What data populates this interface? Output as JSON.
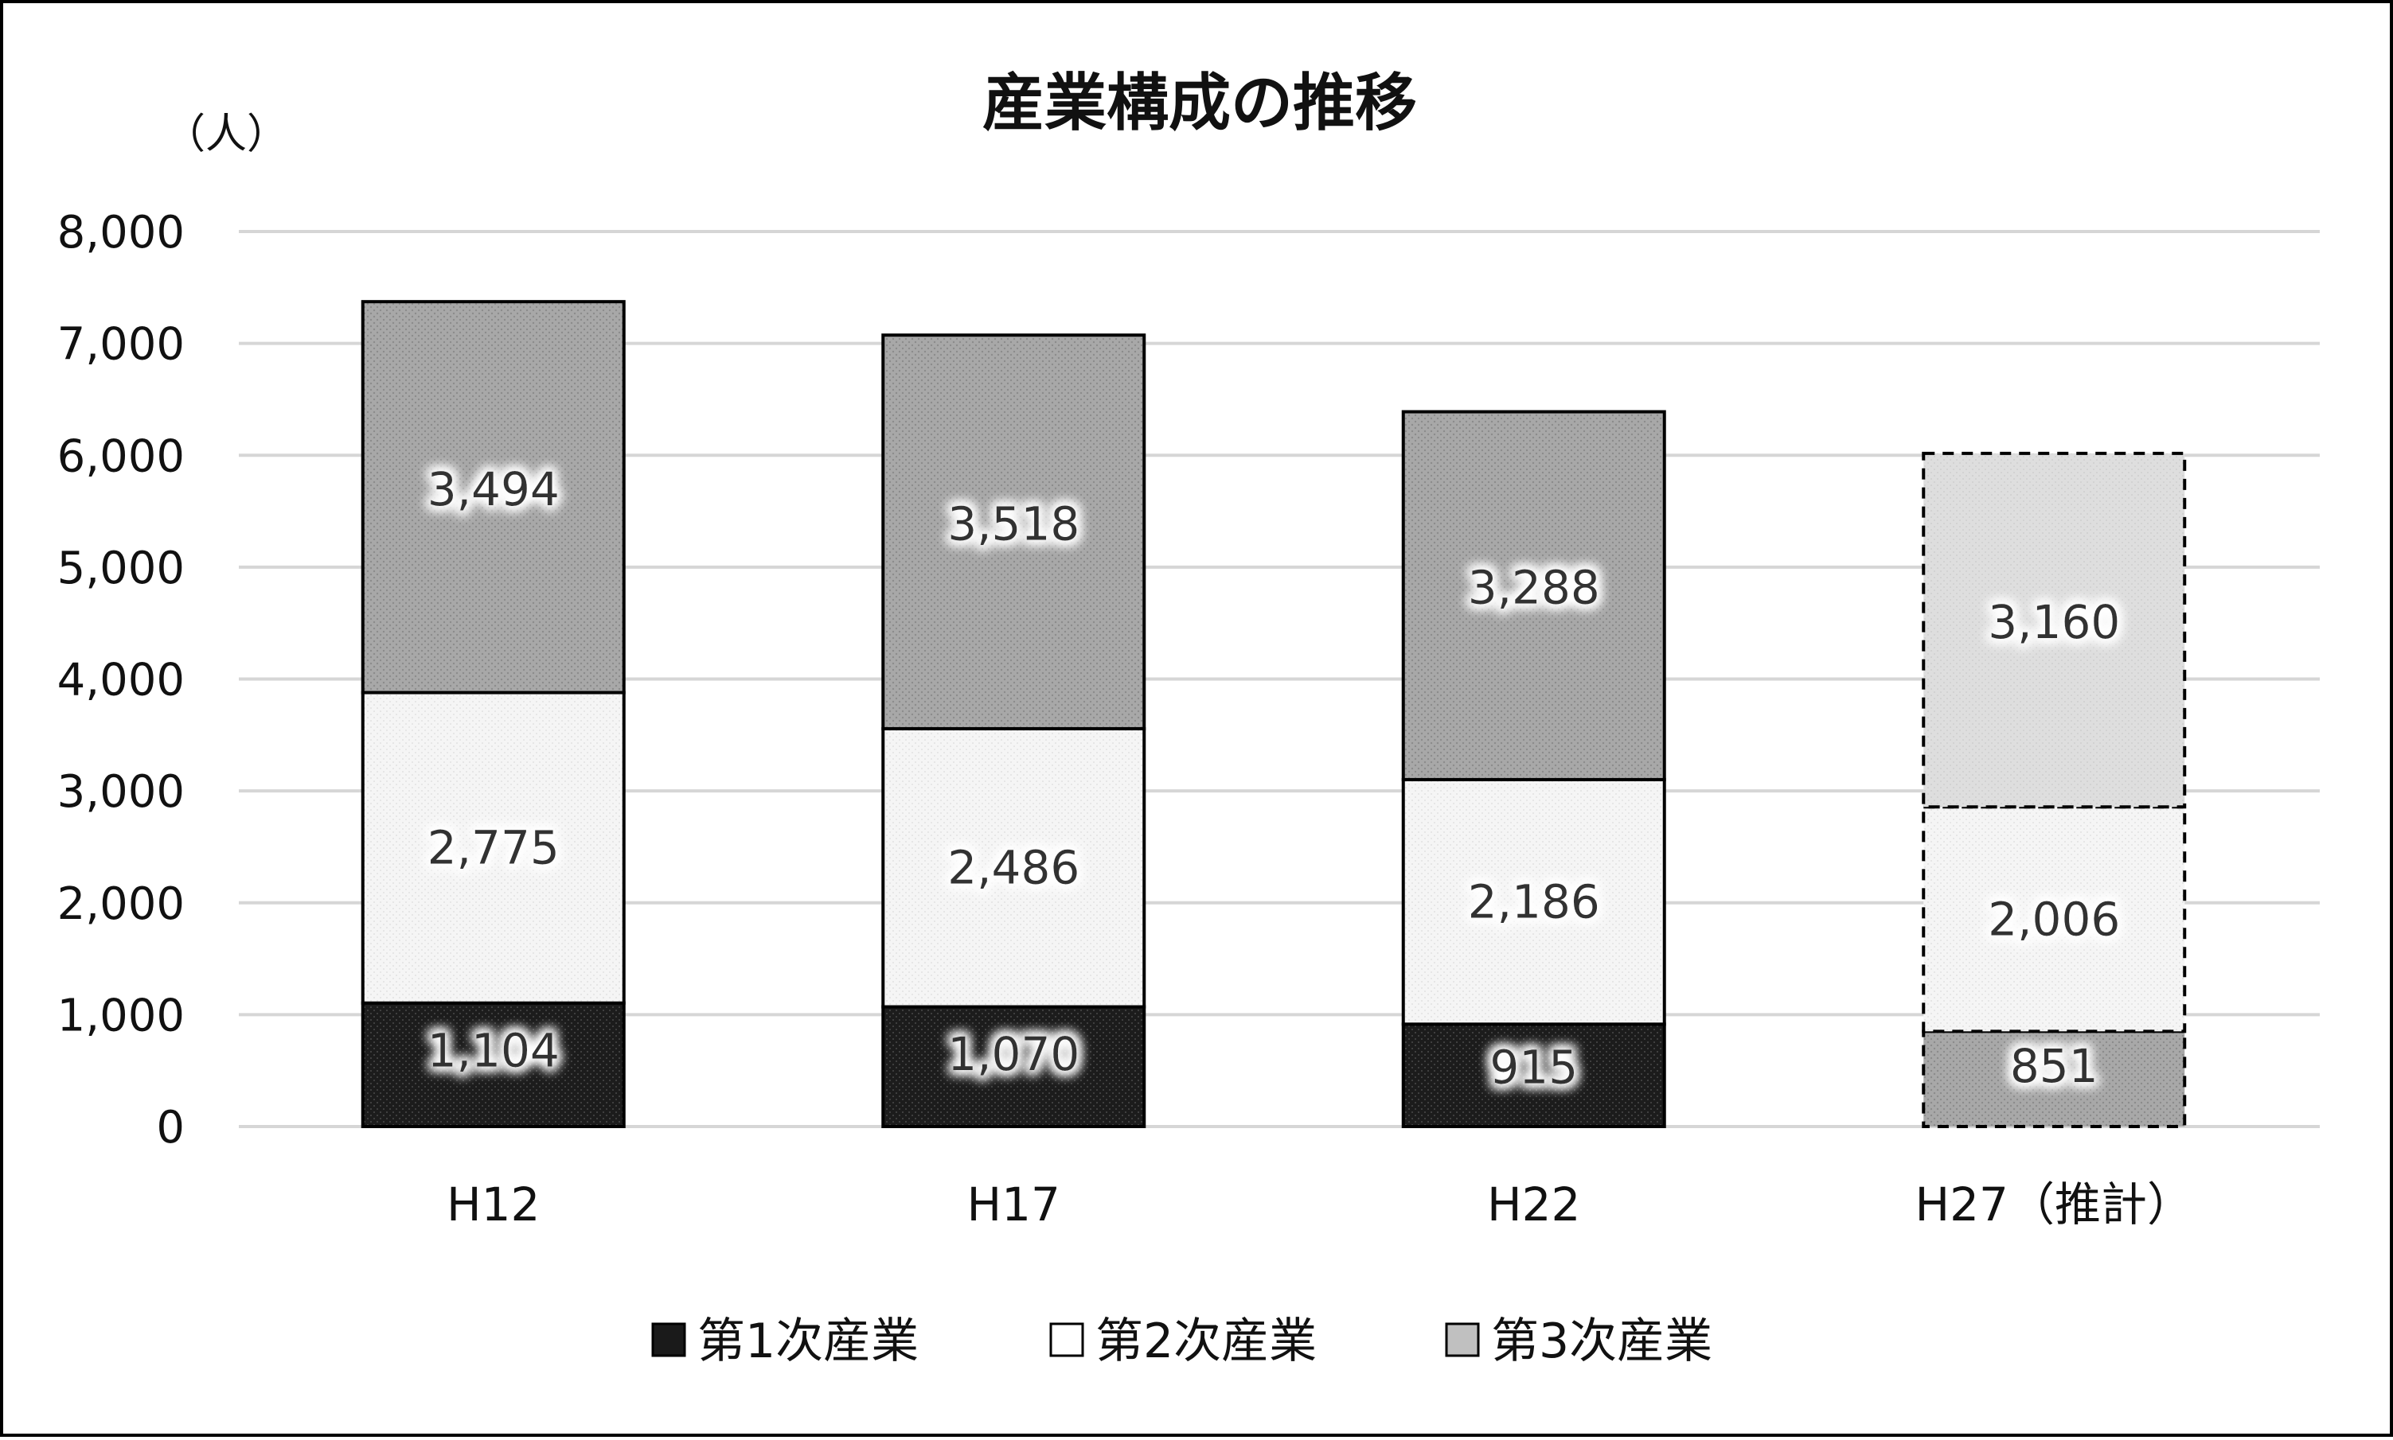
{
  "chart_data": {
    "type": "bar",
    "stacked": true,
    "title": "産業構成の推移",
    "unit_label": "（人）",
    "categories": [
      "H12",
      "H17",
      "H22",
      "H27（推計）"
    ],
    "series": [
      {
        "name": "第1次産業",
        "values": [
          1104,
          1070,
          915,
          851
        ],
        "color": "#1a1a1a"
      },
      {
        "name": "第2次産業",
        "values": [
          2775,
          2486,
          2186,
          2006
        ],
        "color": "#f4f4f4"
      },
      {
        "name": "第3次産業",
        "values": [
          3494,
          3518,
          3288,
          3160
        ],
        "color": "#a6a6a6"
      }
    ],
    "data_labels": [
      [
        "1,104",
        "1,070",
        "915",
        "851"
      ],
      [
        "2,775",
        "2,486",
        "2,186",
        "2,006"
      ],
      [
        "3,494",
        "3,518",
        "3,288",
        "3,160"
      ]
    ],
    "estimated_category": "H27（推計）",
    "estimated_colors": {
      "第1次産業": "#a6a6a6",
      "第2次産業": "#f4f4f4",
      "第3次産業": "#dcdcdc"
    },
    "ylim": [
      0,
      8000
    ],
    "yticks": [
      0,
      1000,
      2000,
      3000,
      4000,
      5000,
      6000,
      7000,
      8000
    ],
    "ytick_labels": [
      "0",
      "1,000",
      "2,000",
      "3,000",
      "4,000",
      "5,000",
      "6,000",
      "7,000",
      "8,000"
    ],
    "grid": true,
    "legend_position": "bottom"
  }
}
